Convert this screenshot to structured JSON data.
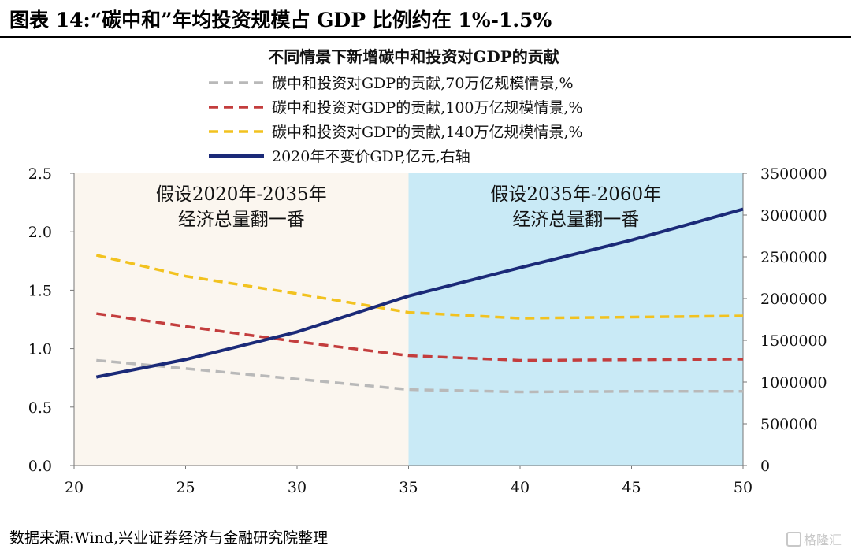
{
  "figure_title": "图表 14:“碳中和”年均投资规模占 GDP 比例约在 1%-1.5%",
  "source": "数据来源:Wind,兴业证券经济与金融研究院整理",
  "watermark": "格隆汇",
  "colors": {
    "period1_bg": "#fbf6ef",
    "period2_bg": "#c9eaf6",
    "series_70": "#b9b9b9",
    "series_100": "#c33d3d",
    "series_140": "#f2c21f",
    "gdp": "#1b2a78"
  },
  "chart_data": {
    "type": "line",
    "title": "不同情景下新增碳中和投资对GDP的贡献",
    "x": [
      21,
      25,
      30,
      35,
      40,
      45,
      50
    ],
    "xlim": [
      20,
      50
    ],
    "xticks": [
      20,
      25,
      30,
      35,
      40,
      45,
      50
    ],
    "ylim_left": [
      0,
      2.5
    ],
    "yticks_left": [
      "0.0",
      "0.5",
      "1.0",
      "1.5",
      "2.0",
      "2.5"
    ],
    "ylim_right": [
      0,
      3500000
    ],
    "yticks_right": [
      "0",
      "500000",
      "1000000",
      "1500000",
      "2000000",
      "2500000",
      "3000000",
      "3500000"
    ],
    "legend_position": "top",
    "series": [
      {
        "name": "碳中和投资对GDP的贡献,70万亿规模情景,%",
        "axis": "left",
        "style": "dashed",
        "color_key": "series_70",
        "values": [
          0.9,
          0.83,
          0.74,
          0.65,
          0.63,
          0.635,
          0.635
        ]
      },
      {
        "name": "碳中和投资对GDP的贡献,100万亿规模情景,%",
        "axis": "left",
        "style": "dashed",
        "color_key": "series_100",
        "values": [
          1.3,
          1.19,
          1.06,
          0.94,
          0.9,
          0.905,
          0.91
        ]
      },
      {
        "name": "碳中和投资对GDP的贡献,140万亿规模情景,%",
        "axis": "left",
        "style": "dashed",
        "color_key": "series_140",
        "values": [
          1.8,
          1.62,
          1.47,
          1.31,
          1.26,
          1.27,
          1.28
        ]
      },
      {
        "name": "2020年不变价GDP,亿元,右轴",
        "axis": "right",
        "style": "solid",
        "color_key": "gdp",
        "values": [
          1060000,
          1270000,
          1600000,
          2030000,
          2370000,
          2700000,
          3070000
        ]
      }
    ],
    "periods": [
      {
        "label_line1": "假设2020年-2035年",
        "label_line2": "经济总量翻一番",
        "x_start": 20,
        "x_end": 35,
        "color_key": "period1_bg"
      },
      {
        "label_line1": "假设2035年-2060年",
        "label_line2": "经济总量翻一番",
        "x_start": 35,
        "x_end": 50,
        "color_key": "period2_bg"
      }
    ]
  }
}
